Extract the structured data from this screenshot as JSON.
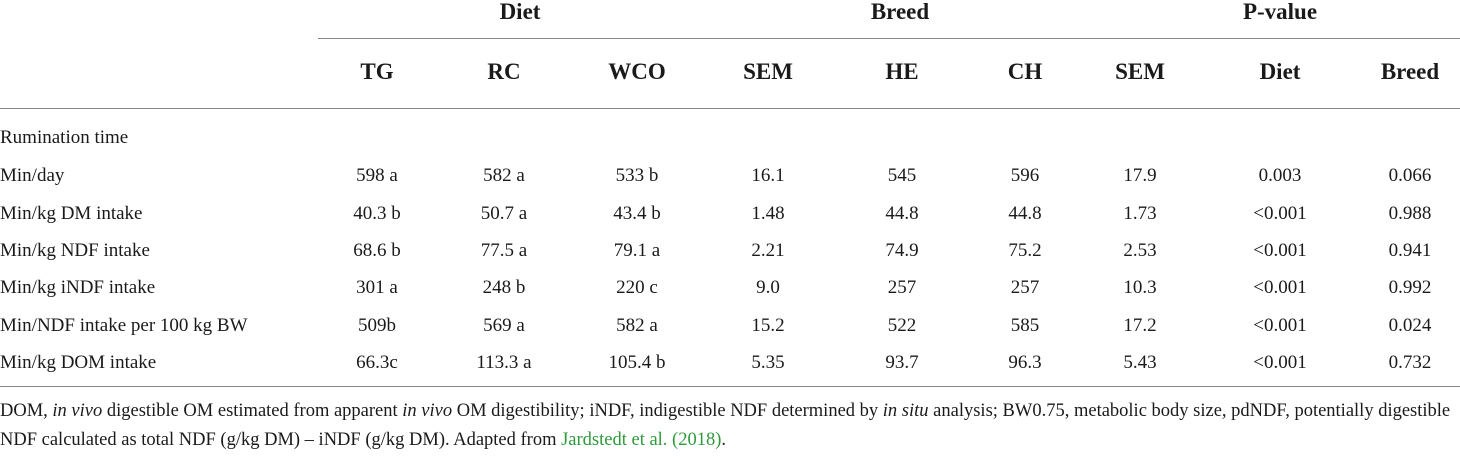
{
  "groups": {
    "diet": "Diet",
    "breed": "Breed",
    "pvalue": "P-value"
  },
  "columns": [
    "TG",
    "RC",
    "WCO",
    "SEM",
    "HE",
    "CH",
    "SEM",
    "Diet",
    "Breed"
  ],
  "section_label": "Rumination time",
  "rows": [
    {
      "label": "Min/day",
      "cells": [
        "598 a",
        "582 a",
        "533 b",
        "16.1",
        "545",
        "596",
        "17.9",
        "0.003",
        "0.066"
      ]
    },
    {
      "label": "Min/kg DM intake",
      "cells": [
        "40.3 b",
        "50.7 a",
        "43.4 b",
        "1.48",
        "44.8",
        "44.8",
        "1.73",
        "<0.001",
        "0.988"
      ]
    },
    {
      "label": "Min/kg NDF intake",
      "cells": [
        "68.6 b",
        "77.5 a",
        "79.1 a",
        "2.21",
        "74.9",
        "75.2",
        "2.53",
        "<0.001",
        "0.941"
      ]
    },
    {
      "label": "Min/kg iNDF intake",
      "cells": [
        "301 a",
        "248 b",
        "220 c",
        "9.0",
        "257",
        "257",
        "10.3",
        "<0.001",
        "0.992"
      ]
    },
    {
      "label": "Min/NDF intake per 100 kg BW",
      "cells": [
        "509b",
        "569 a",
        "582 a",
        "15.2",
        "522",
        "585",
        "17.2",
        "<0.001",
        "0.024"
      ]
    },
    {
      "label": "Min/kg DOM intake",
      "cells": [
        "66.3c",
        "113.3 a",
        "105.4 b",
        "5.35",
        "93.7",
        "96.3",
        "5.43",
        "<0.001",
        "0.732"
      ]
    }
  ],
  "footnote": {
    "t1": "DOM, ",
    "i1": "in vivo",
    "t2": " digestible OM estimated from apparent ",
    "i2": "in vivo",
    "t3": " OM digestibility; iNDF, indigestible NDF determined by ",
    "i3": "in situ",
    "t4": " analysis; BW0.75, metabolic body size, pdNDF, potentially digestible NDF calculated as total NDF (g/kg DM) – iNDF (g/kg DM). Adapted from ",
    "ref": "Jardstedt et al. (2018)",
    "t5": "."
  },
  "colors": {
    "text": "#1a1a1a",
    "rule": "#888888",
    "link": "#2e9a3a"
  }
}
